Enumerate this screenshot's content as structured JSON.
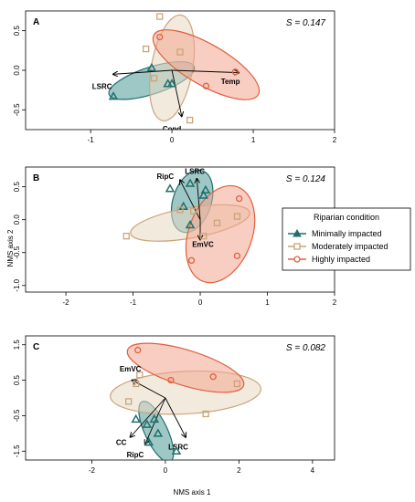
{
  "axis_titles": {
    "x": "NMS axis 1",
    "y": "NMS axis 2"
  },
  "legend": {
    "title": "Riparian condition",
    "entries": [
      {
        "label": "Minimally impacted",
        "color": "#1f6f6b",
        "marker": "triangle"
      },
      {
        "label": "Moderately impacted",
        "color": "#c9a57a",
        "marker": "square"
      },
      {
        "label": "Highly impacted",
        "color": "#e0603e",
        "marker": "circle"
      }
    ]
  },
  "colors": {
    "minimal": "#1f6f6b",
    "minimal_fill": "#4f9a96",
    "moderate": "#c9a57a",
    "moderate_fill": "#ead9c2",
    "high": "#e0603e",
    "high_fill": "#f2a58f"
  },
  "chart_data": [
    {
      "type": "scatter",
      "panel": "A",
      "stress_label": "S = 0.147",
      "xlim": [
        -1.8,
        2.0
      ],
      "ylim": [
        -0.75,
        0.75
      ],
      "xticks": [
        -1,
        0,
        1,
        2
      ],
      "yticks": [
        -0.5,
        0.0,
        0.5
      ],
      "series": [
        {
          "group": "minimal",
          "points": [
            [
              -0.72,
              -0.33
            ],
            [
              -0.25,
              0.03
            ],
            [
              -0.05,
              -0.17
            ],
            [
              0.0,
              -0.17
            ]
          ]
        },
        {
          "group": "moderate",
          "points": [
            [
              -0.32,
              0.27
            ],
            [
              -0.15,
              0.68
            ],
            [
              -0.22,
              -0.1
            ],
            [
              0.1,
              0.23
            ],
            [
              0.22,
              -0.63
            ]
          ]
        },
        {
          "group": "high",
          "points": [
            [
              -0.15,
              0.42
            ],
            [
              0.42,
              -0.2
            ],
            [
              0.78,
              -0.02
            ]
          ]
        }
      ],
      "ellipses": [
        {
          "group": "minimal",
          "cx": -0.25,
          "cy": -0.13,
          "rx": 0.55,
          "ry": 0.17,
          "angle": 18
        },
        {
          "group": "moderate",
          "cx": 0.0,
          "cy": 0.03,
          "rx": 0.66,
          "ry": 0.26,
          "angle": 80
        },
        {
          "group": "high",
          "cx": 0.42,
          "cy": 0.07,
          "rx": 0.74,
          "ry": 0.26,
          "angle": -30
        }
      ],
      "vectors": [
        {
          "label": "Temp",
          "x": 0.82,
          "y": -0.03,
          "lx": 0.72,
          "ly": -0.14
        },
        {
          "label": "LSRC",
          "x": -0.72,
          "y": -0.05,
          "lx": -0.86,
          "ly": -0.2
        },
        {
          "label": "Cond",
          "x": 0.12,
          "y": -0.58,
          "lx": 0.0,
          "ly": -0.74
        }
      ]
    },
    {
      "type": "scatter",
      "panel": "B",
      "stress_label": "S = 0.124",
      "xlim": [
        -2.6,
        2.0
      ],
      "ylim": [
        -1.1,
        0.8
      ],
      "xticks": [
        -2,
        -1,
        0,
        1,
        2
      ],
      "yticks": [
        -1.0,
        -0.5,
        0.0,
        0.5
      ],
      "series": [
        {
          "group": "minimal",
          "points": [
            [
              -0.45,
              0.47
            ],
            [
              -0.15,
              0.55
            ],
            [
              0.05,
              0.37
            ],
            [
              -0.25,
              0.2
            ],
            [
              0.08,
              0.45
            ],
            [
              -0.15,
              -0.08
            ]
          ]
        },
        {
          "group": "moderate",
          "points": [
            [
              -1.1,
              -0.25
            ],
            [
              -0.3,
              0.15
            ],
            [
              -0.1,
              0.13
            ],
            [
              0.05,
              -0.25
            ],
            [
              0.25,
              -0.05
            ],
            [
              0.55,
              0.05
            ]
          ]
        },
        {
          "group": "high",
          "points": [
            [
              -0.13,
              -0.62
            ],
            [
              0.58,
              0.32
            ],
            [
              0.55,
              -0.55
            ]
          ]
        }
      ],
      "ellipses": [
        {
          "group": "minimal",
          "cx": -0.12,
          "cy": 0.28,
          "rx": 0.48,
          "ry": 0.29,
          "angle": 72
        },
        {
          "group": "moderate",
          "cx": -0.15,
          "cy": -0.05,
          "rx": 0.9,
          "ry": 0.23,
          "angle": 10
        },
        {
          "group": "high",
          "cx": 0.3,
          "cy": -0.22,
          "rx": 0.75,
          "ry": 0.48,
          "angle": 70
        }
      ],
      "vectors": [
        {
          "label": "RipC",
          "x": -0.3,
          "y": 0.6,
          "lx": -0.52,
          "ly": 0.66
        },
        {
          "label": "LSRC",
          "x": -0.05,
          "y": 0.62,
          "lx": -0.08,
          "ly": 0.74
        },
        {
          "label": "EmVC",
          "x": 0.0,
          "y": -0.3,
          "lx": 0.04,
          "ly": -0.37
        }
      ]
    },
    {
      "type": "scatter",
      "panel": "C",
      "stress_label": "S = 0.082",
      "xlim": [
        -3.8,
        4.6
      ],
      "ylim": [
        -1.75,
        1.75
      ],
      "xticks": [
        -2,
        0,
        2,
        4
      ],
      "yticks": [
        -1.5,
        -0.5,
        0.5,
        1.5
      ],
      "series": [
        {
          "group": "minimal",
          "points": [
            [
              -0.8,
              -0.6
            ],
            [
              -0.5,
              -0.75
            ],
            [
              -0.3,
              -0.6
            ],
            [
              -0.2,
              -1.0
            ],
            [
              -0.45,
              -1.25
            ],
            [
              0.3,
              -1.5
            ]
          ]
        },
        {
          "group": "moderate",
          "points": [
            [
              -1.0,
              -0.1
            ],
            [
              -0.7,
              0.65
            ],
            [
              -0.8,
              0.4
            ],
            [
              1.1,
              -0.45
            ],
            [
              1.95,
              0.4
            ]
          ]
        },
        {
          "group": "high",
          "points": [
            [
              -0.75,
              1.35
            ],
            [
              0.15,
              0.5
            ],
            [
              1.3,
              0.6
            ]
          ]
        }
      ],
      "ellipses": [
        {
          "group": "minimal",
          "cx": -0.25,
          "cy": -0.95,
          "rx": 0.9,
          "ry": 0.32,
          "angle": -65
        },
        {
          "group": "moderate",
          "cx": 0.55,
          "cy": 0.15,
          "rx": 2.05,
          "ry": 0.6,
          "angle": 3
        },
        {
          "group": "high",
          "cx": 0.55,
          "cy": 0.85,
          "rx": 1.65,
          "ry": 0.5,
          "angle": -17
        }
      ],
      "vectors": [
        {
          "label": "EmVC",
          "x": -0.9,
          "y": 0.5,
          "lx": -0.95,
          "ly": 0.82
        },
        {
          "label": "LSRC",
          "x": 0.55,
          "y": -1.1,
          "lx": 0.35,
          "ly": -1.38
        },
        {
          "label": "CC",
          "x": -0.95,
          "y": -1.1,
          "lx": -1.2,
          "ly": -1.25
        },
        {
          "label": "RipC",
          "x": -0.55,
          "y": -1.3,
          "lx": -0.82,
          "ly": -1.6
        }
      ]
    }
  ]
}
